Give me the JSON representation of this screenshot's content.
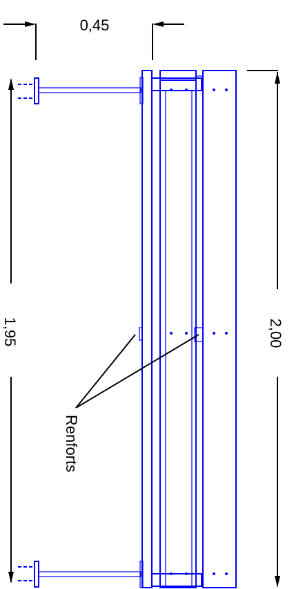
{
  "dimensions": {
    "width_label": "0,45",
    "left_height_label": "1,95",
    "right_height_label": "2,00"
  },
  "annotations": {
    "reinforcements_label": "Renforts"
  },
  "colors": {
    "structure": "#0000ff",
    "dimension_lines": "#000000",
    "background": "#ffffff"
  }
}
